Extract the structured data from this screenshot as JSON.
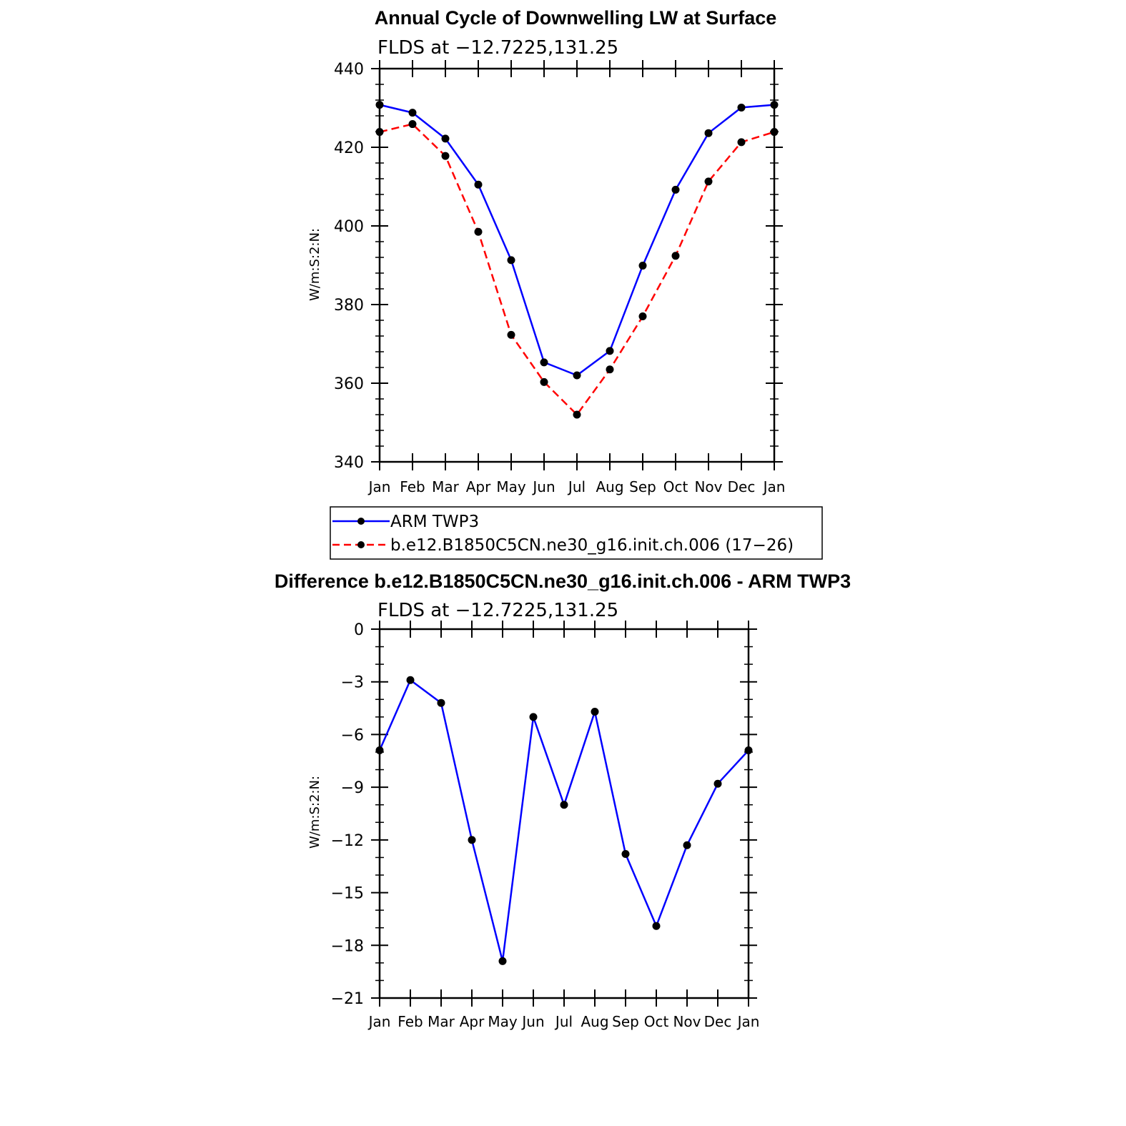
{
  "chart_data": [
    {
      "type": "line",
      "title": "Annual Cycle of Downwelling LW at Surface",
      "subtitle": "FLDS at −12.7225,131.25",
      "xlabel": "",
      "ylabel": "W/m:S:2:N:",
      "categories": [
        "Jan",
        "Feb",
        "Mar",
        "Apr",
        "May",
        "Jun",
        "Jul",
        "Aug",
        "Sep",
        "Oct",
        "Nov",
        "Dec",
        "Jan"
      ],
      "ylim": [
        340,
        440
      ],
      "yticks": [
        "340",
        "360",
        "380",
        "400",
        "420",
        "440"
      ],
      "yticks_values": [
        340,
        360,
        380,
        400,
        420,
        440
      ],
      "series": [
        {
          "name": "ARM TWP3",
          "color": "#0000ff",
          "style": "solid",
          "values": [
            430.8,
            428.8,
            422.2,
            410.5,
            391.3,
            365.3,
            362.0,
            368.2,
            389.9,
            409.2,
            423.6,
            430.1,
            430.8
          ]
        },
        {
          "name": "b.e12.B1850C5CN.ne30_g16.init.ch.006 (17−26)",
          "color": "#ff0000",
          "style": "dashed",
          "values": [
            423.9,
            425.9,
            417.8,
            398.5,
            372.3,
            360.3,
            352.0,
            363.5,
            377.0,
            392.4,
            411.3,
            421.3,
            423.9
          ]
        }
      ],
      "legend": "below"
    },
    {
      "type": "line",
      "title": "Difference b.e12.B1850C5CN.ne30_g16.init.ch.006 - ARM TWP3",
      "subtitle": "FLDS at −12.7225,131.25",
      "xlabel": "",
      "ylabel": "W/m:S:2:N:",
      "categories": [
        "Jan",
        "Feb",
        "Mar",
        "Apr",
        "May",
        "Jun",
        "Jul",
        "Aug",
        "Sep",
        "Oct",
        "Nov",
        "Dec",
        "Jan"
      ],
      "ylim": [
        -21,
        0
      ],
      "yticks": [
        "0",
        "−3",
        "−6",
        "−9",
        "−12",
        "−15",
        "−18",
        "−21"
      ],
      "yticks_values": [
        0,
        -3,
        -6,
        -9,
        -12,
        -15,
        -18,
        -21
      ],
      "series": [
        {
          "name": "Difference",
          "color": "#0000ff",
          "style": "solid",
          "values": [
            -6.9,
            -2.9,
            -4.2,
            -12.0,
            -18.9,
            -5.0,
            -10.0,
            -4.7,
            -12.8,
            -16.9,
            -12.3,
            -8.8,
            -6.9
          ]
        }
      ]
    }
  ]
}
